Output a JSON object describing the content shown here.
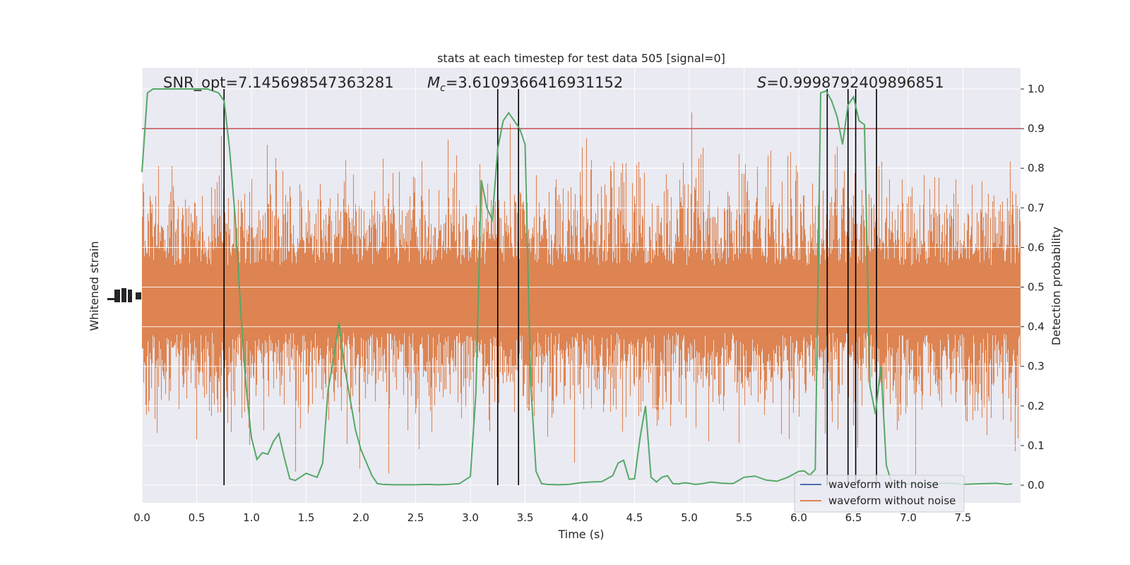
{
  "chart_data": {
    "type": "line",
    "title": "stats at each timestep for test data 505 [signal=0]",
    "xlabel": "Time (s)",
    "ylabel_left": "Whitened strain",
    "ylabel_right": "Detection probability",
    "xlim": [
      0.0,
      8.0
    ],
    "ylim_right": [
      -0.05,
      1.05
    ],
    "x_ticks": [
      "0.0",
      "0.5",
      "1.0",
      "1.5",
      "2.0",
      "2.5",
      "3.0",
      "3.5",
      "4.0",
      "4.5",
      "5.0",
      "5.5",
      "6.0",
      "6.5",
      "7.0",
      "7.5"
    ],
    "right_ticks": [
      "0.0",
      "0.1",
      "0.2",
      "0.3",
      "0.4",
      "0.5",
      "0.6",
      "0.7",
      "0.8",
      "0.9",
      "1.0"
    ],
    "grid": true,
    "legend_position": "lower-right",
    "annotations": {
      "snr": "SNR_opt=7.145698547363281",
      "mc_symbol": "M",
      "mc_sub": "c",
      "mc_value": "=3.6109366416931152",
      "s_symbol": "S",
      "s_value": "=0.9998792409896851"
    },
    "threshold": 0.9,
    "vertical_lines_x": [
      0.75,
      3.25,
      3.44,
      6.26,
      6.45,
      6.52,
      6.71
    ],
    "series": [
      {
        "name": "waveform with noise",
        "color": "#4c72b0"
      },
      {
        "name": "waveform without noise",
        "color": "#dd8452"
      },
      {
        "color": "#55a868",
        "x": [
          0.0,
          0.05,
          0.1,
          0.2,
          0.3,
          0.4,
          0.5,
          0.6,
          0.7,
          0.75,
          0.8,
          0.85,
          0.9,
          0.95,
          1.0,
          1.05,
          1.1,
          1.15,
          1.2,
          1.25,
          1.3,
          1.35,
          1.4,
          1.5,
          1.6,
          1.65,
          1.7,
          1.75,
          1.8,
          1.85,
          1.9,
          1.95,
          2.0,
          2.1,
          2.15,
          2.2,
          2.3,
          2.4,
          2.5,
          2.6,
          2.7,
          2.8,
          2.9,
          3.0,
          3.05,
          3.1,
          3.15,
          3.2,
          3.25,
          3.3,
          3.35,
          3.4,
          3.45,
          3.5,
          3.55,
          3.6,
          3.65,
          3.7,
          3.8,
          3.9,
          4.0,
          4.1,
          4.2,
          4.3,
          4.35,
          4.4,
          4.45,
          4.5,
          4.55,
          4.6,
          4.65,
          4.7,
          4.75,
          4.8,
          4.85,
          4.9,
          4.95,
          5.0,
          5.05,
          5.1,
          5.2,
          5.3,
          5.4,
          5.5,
          5.6,
          5.7,
          5.8,
          5.9,
          6.0,
          6.05,
          6.1,
          6.15,
          6.2,
          6.25,
          6.3,
          6.35,
          6.4,
          6.45,
          6.5,
          6.55,
          6.6,
          6.65,
          6.7,
          6.75,
          6.8,
          6.85,
          6.9,
          6.95,
          7.0,
          7.1,
          7.2,
          7.3,
          7.4,
          7.5,
          7.6,
          7.7,
          7.8,
          7.9,
          7.95
        ],
        "y": [
          0.79,
          0.99,
          1.0,
          1.0,
          1.0,
          1.0,
          1.0,
          1.0,
          0.99,
          0.97,
          0.85,
          0.68,
          0.45,
          0.25,
          0.12,
          0.065,
          0.082,
          0.078,
          0.11,
          0.13,
          0.07,
          0.016,
          0.012,
          0.03,
          0.02,
          0.055,
          0.24,
          0.32,
          0.41,
          0.3,
          0.22,
          0.14,
          0.09,
          0.025,
          0.004,
          0.002,
          0.001,
          0.001,
          0.001,
          0.002,
          0.001,
          0.002,
          0.004,
          0.022,
          0.23,
          0.77,
          0.7,
          0.67,
          0.85,
          0.92,
          0.94,
          0.92,
          0.9,
          0.86,
          0.26,
          0.035,
          0.004,
          0.002,
          0.001,
          0.002,
          0.006,
          0.008,
          0.009,
          0.024,
          0.056,
          0.063,
          0.015,
          0.016,
          0.12,
          0.2,
          0.02,
          0.008,
          0.02,
          0.024,
          0.004,
          0.003,
          0.006,
          0.005,
          0.002,
          0.003,
          0.008,
          0.005,
          0.004,
          0.02,
          0.023,
          0.013,
          0.01,
          0.02,
          0.035,
          0.036,
          0.025,
          0.04,
          0.99,
          0.995,
          0.97,
          0.93,
          0.86,
          0.96,
          0.98,
          0.92,
          0.91,
          0.25,
          0.18,
          0.3,
          0.05,
          0.005,
          0.003,
          0.006,
          0.003,
          0.004,
          0.003,
          0.005,
          0.005,
          0.002,
          0.003,
          0.004,
          0.005,
          0.002,
          0.003
        ]
      }
    ],
    "strain_band": {
      "center": 0.47,
      "halfwidth": 0.085
    }
  }
}
